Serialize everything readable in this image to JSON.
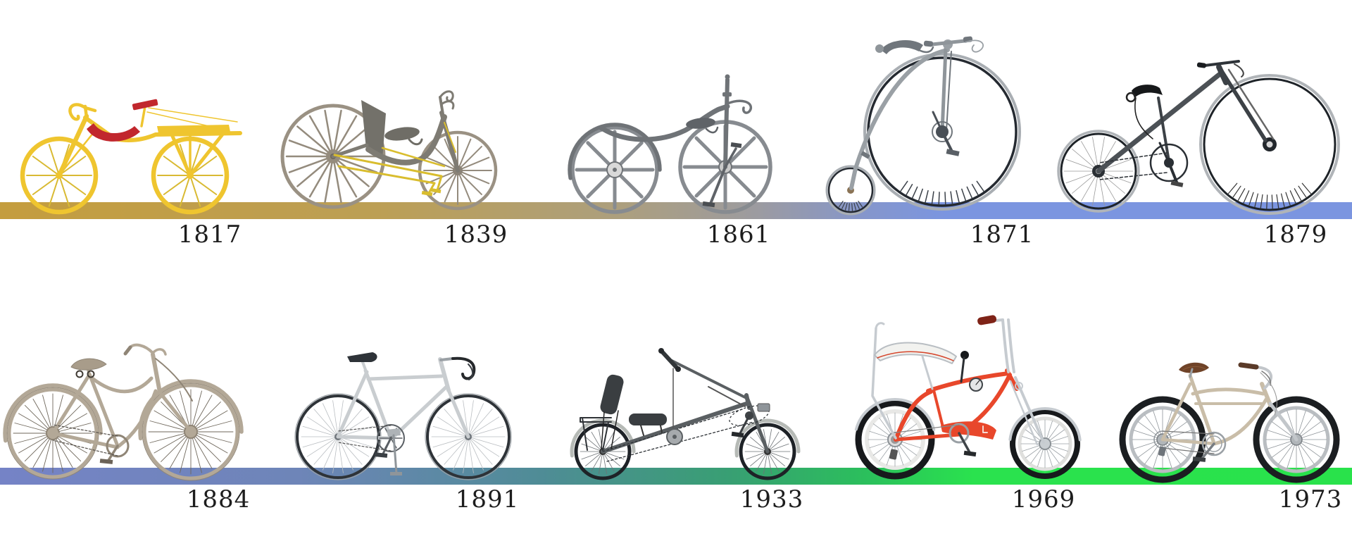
{
  "colors": {
    "row1_bar": [
      {
        "c": "#C49D3E",
        "p": 0
      },
      {
        "c": "#BC9F55",
        "p": 28
      },
      {
        "c": "#AC9F7E",
        "p": 46
      },
      {
        "c": "#9C9BA0",
        "p": 56
      },
      {
        "c": "#8596CC",
        "p": 64
      },
      {
        "c": "#7B95E0",
        "p": 70
      },
      {
        "c": "#7B95E0",
        "p": 100
      }
    ],
    "row2_bar": [
      {
        "c": "#7583C6",
        "p": 0
      },
      {
        "c": "#6E85B8",
        "p": 22
      },
      {
        "c": "#4F8C96",
        "p": 40
      },
      {
        "c": "#389F73",
        "p": 54
      },
      {
        "c": "#2BBF5C",
        "p": 64
      },
      {
        "c": "#2AE24E",
        "p": 72
      },
      {
        "c": "#29E24B",
        "p": 100
      }
    ],
    "draisine_yellow": "#EFC52F",
    "draisine_seat_red": "#C1272D",
    "treadle_yellow": "#D9BD2E",
    "stingray_red": "#E8472B",
    "cruiser_tan": "#C9BDA8",
    "year_text": "#1D1D1D"
  },
  "timeline": {
    "rows": [
      {
        "years": [
          "1817",
          "1839",
          "1861",
          "1871",
          "1879"
        ]
      },
      {
        "years": [
          "1884",
          "1891",
          "1933",
          "1969",
          "1973"
        ]
      }
    ]
  }
}
